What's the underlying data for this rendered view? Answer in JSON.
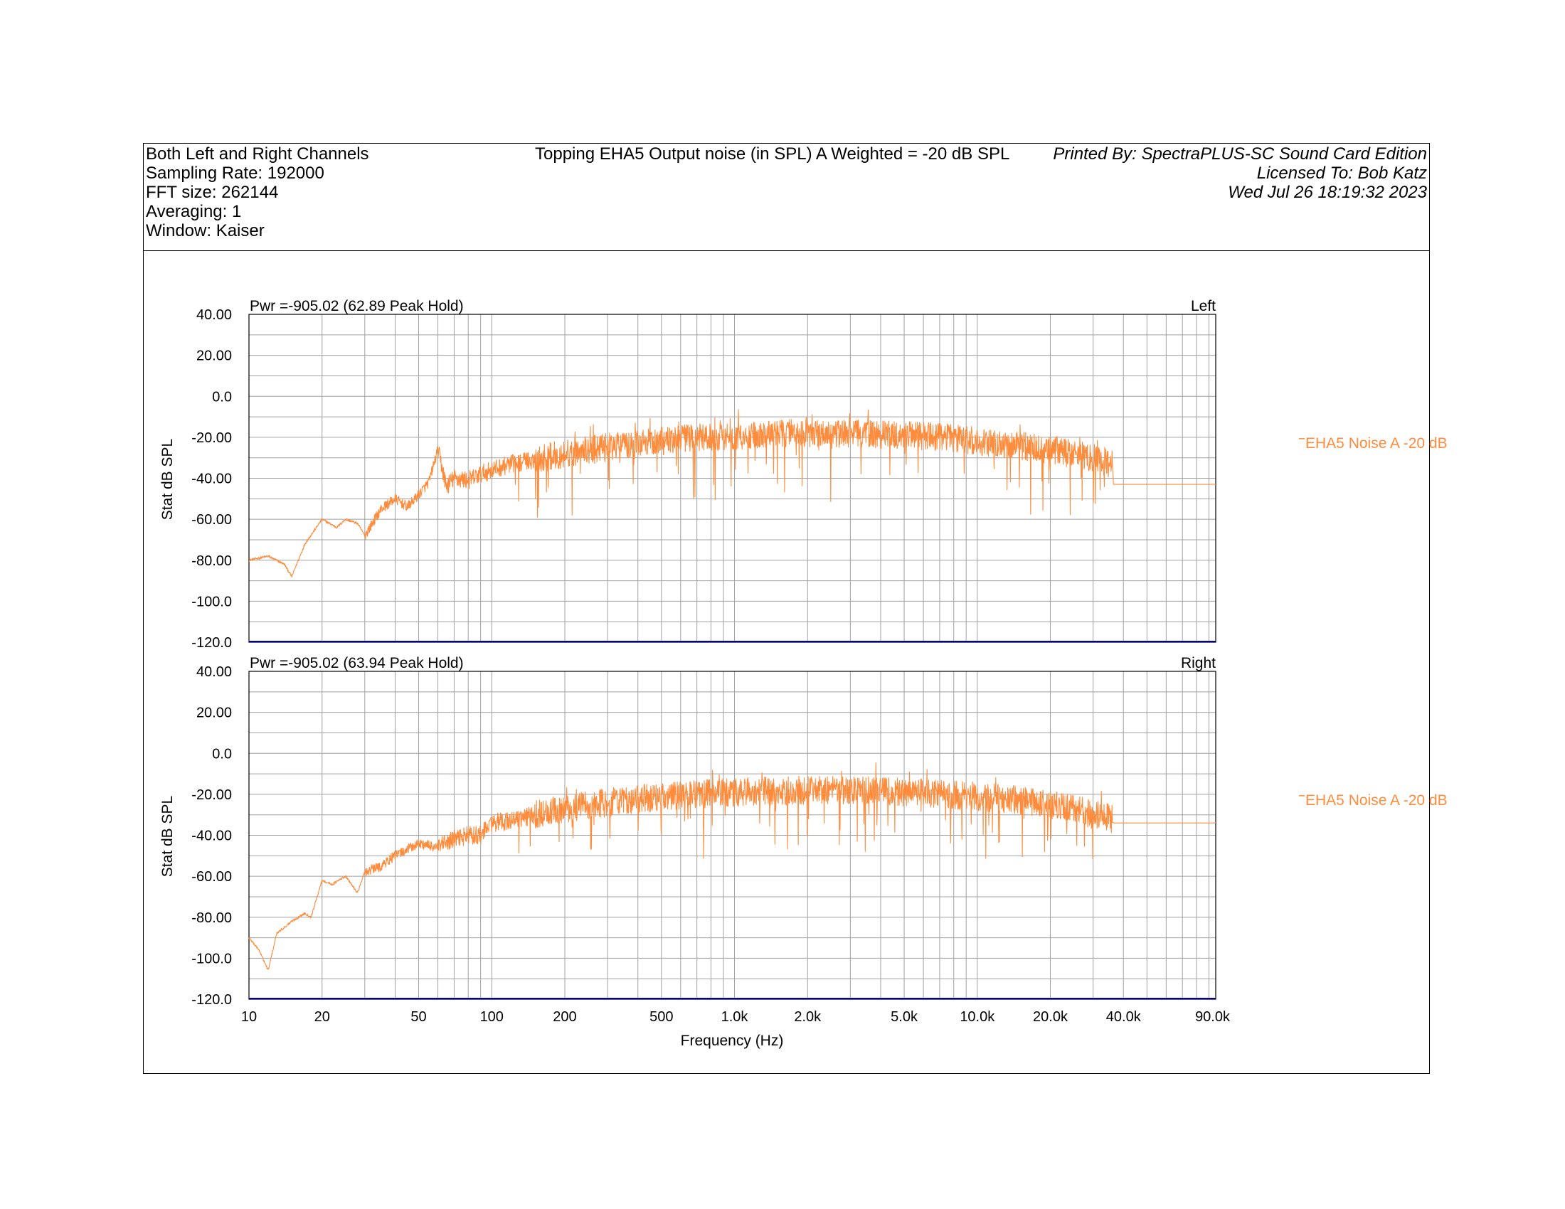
{
  "header": {
    "info_lines": [
      "Both Left and Right Channels",
      "Sampling Rate: 192000",
      "FFT size: 262144",
      "Averaging: 1",
      "Window: Kaiser"
    ],
    "title": "Topping EHA5 Output noise (in SPL) A Weighted = -20 dB SPL",
    "printed_by": "Printed By: SpectraPLUS-SC Sound Card Edition",
    "licensed_to": "Licensed To: Bob Katz",
    "datetime": "Wed Jul 26 18:19:32 2023"
  },
  "colors": {
    "trace": "#ff8c3c",
    "grid": "#a0a0a0",
    "baseline": "#0000aa"
  },
  "chart_data": [
    {
      "type": "line",
      "channel_label": "Left",
      "annotation": "Pwr =-905.02 (62.89 Peak Hold)",
      "legend_entry": "EHA5 Noise A -20 dB",
      "xlabel": "",
      "ylabel": "Stat dB SPL",
      "xscale": "log",
      "xlim": [
        10,
        96000
      ],
      "ylim": [
        -120,
        40
      ],
      "y_ticks": [
        "40.00",
        "20.00",
        "0.0",
        "-20.00",
        "-40.00",
        "-60.00",
        "-80.00",
        "-100.0",
        "-120.0"
      ],
      "grid": true,
      "noise_floor_dbspl": -120,
      "series": [
        {
          "name": "EHA5 Noise A -20 dB",
          "x": [
            10,
            12,
            14,
            15,
            17,
            20,
            23,
            25,
            28,
            30,
            35,
            40,
            45,
            50,
            55,
            60,
            65,
            70,
            80,
            90,
            100,
            120,
            150,
            200,
            300,
            500,
            700,
            1000,
            2000,
            3000,
            5000,
            7000,
            10000,
            15000,
            20000,
            25000,
            30000,
            36000,
            36500,
            96000
          ],
          "y": [
            -80,
            -78,
            -82,
            -88,
            -72,
            -60,
            -64,
            -60,
            -62,
            -68,
            -55,
            -50,
            -54,
            -48,
            -42,
            -26,
            -44,
            -40,
            -41,
            -38,
            -36,
            -33,
            -31,
            -28,
            -25,
            -22,
            -20,
            -19,
            -18,
            -18,
            -19,
            -20,
            -22,
            -24,
            -26,
            -28,
            -30,
            -33,
            -43,
            -43
          ]
        }
      ]
    },
    {
      "type": "line",
      "channel_label": "Right",
      "annotation": "Pwr =-905.02 (63.94 Peak Hold)",
      "legend_entry": "EHA5 Noise A -20 dB",
      "xlabel": "Frequency (Hz)",
      "ylabel": "Stat dB SPL",
      "xscale": "log",
      "xlim": [
        10,
        96000
      ],
      "ylim": [
        -120,
        40
      ],
      "x_ticks": [
        {
          "value": 10,
          "label": "10"
        },
        {
          "value": 20,
          "label": "20"
        },
        {
          "value": 50,
          "label": "50"
        },
        {
          "value": 100,
          "label": "100"
        },
        {
          "value": 200,
          "label": "200"
        },
        {
          "value": 500,
          "label": "500"
        },
        {
          "value": 1000,
          "label": "1.0k"
        },
        {
          "value": 2000,
          "label": "2.0k"
        },
        {
          "value": 5000,
          "label": "5.0k"
        },
        {
          "value": 10000,
          "label": "10.0k"
        },
        {
          "value": 20000,
          "label": "20.0k"
        },
        {
          "value": 40000,
          "label": "40.0k"
        },
        {
          "value": 90000,
          "label": "90.0k"
        }
      ],
      "y_ticks": [
        "40.00",
        "20.00",
        "0.0",
        "-20.00",
        "-40.00",
        "-60.00",
        "-80.00",
        "-100.0",
        "-120.0"
      ],
      "grid": true,
      "noise_floor_dbspl": -120,
      "series": [
        {
          "name": "EHA5 Noise A -20 dB",
          "x": [
            10,
            11,
            12,
            13,
            15,
            16,
            17,
            18,
            20,
            22,
            25,
            28,
            30,
            35,
            40,
            50,
            60,
            70,
            80,
            90,
            100,
            120,
            150,
            200,
            300,
            500,
            700,
            1000,
            2000,
            3000,
            5000,
            7000,
            10000,
            15000,
            20000,
            25000,
            30000,
            36000,
            36500,
            96000
          ],
          "y": [
            -90,
            -96,
            -106,
            -88,
            -82,
            -80,
            -78,
            -80,
            -62,
            -64,
            -60,
            -68,
            -58,
            -55,
            -50,
            -44,
            -46,
            -42,
            -40,
            -40,
            -34,
            -33,
            -30,
            -27,
            -24,
            -21,
            -20,
            -19,
            -18,
            -18,
            -19,
            -20,
            -21,
            -23,
            -25,
            -27,
            -30,
            -32,
            -34,
            -34
          ]
        }
      ]
    }
  ]
}
